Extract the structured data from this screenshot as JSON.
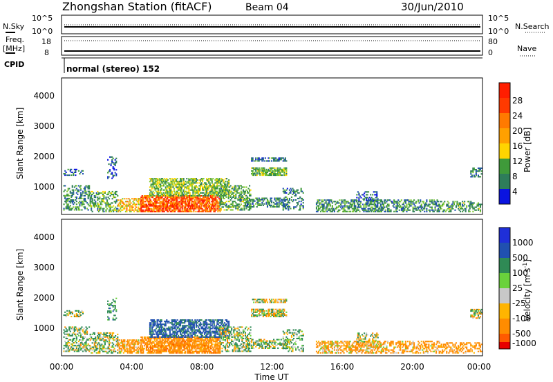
{
  "header": {
    "station_title": "Zhongshan Station (fitACF)",
    "beam": "Beam 04",
    "date": "30/Jun/2010"
  },
  "strip_labels": {
    "nsky": "N.Sky",
    "nsky_top": "10^5",
    "nsky_bottom": "10^0",
    "nsearch": "N.Search",
    "nsearch_top": "10^5",
    "nsearch_bottom": "10^0",
    "freq_line1": "Freq.",
    "freq_line2": "[MHz]",
    "freq_top": "18",
    "freq_bottom": "8",
    "nave": "Nave",
    "nave_top": "80",
    "nave_bottom": "0",
    "cpid": "CPID",
    "cpid_value": "normal (stereo) 152"
  },
  "x_axis": {
    "label": "Time UT",
    "ticks": [
      "00:00",
      "04:00",
      "08:00",
      "12:00",
      "16:00",
      "20:00",
      "00:00"
    ]
  },
  "panels": {
    "power": {
      "ylabel": "Slant Range [km]",
      "yticks": [
        "1000",
        "2000",
        "3000",
        "4000"
      ],
      "colorbar_label": "Power [dB]",
      "colorbar_ticks": [
        "4",
        "8",
        "12",
        "16",
        "20",
        "24",
        "28"
      ]
    },
    "velocity": {
      "ylabel": "Slant Range [km]",
      "yticks": [
        "1000",
        "2000",
        "3000",
        "4000"
      ],
      "colorbar_label": "Velocity [m s",
      "colorbar_label_sup": "-1",
      "colorbar_label_end": "]",
      "colorbar_ticks": [
        "1000",
        "500",
        "100",
        "25",
        "-25",
        "-100",
        "-500",
        "-1000"
      ]
    }
  },
  "chart_data": {
    "type": "heatmap",
    "title": "Zhongshan Station (fitACF) Beam 04 30/Jun/2010",
    "x_unit": "hours UT",
    "xlim": [
      0,
      24
    ],
    "ylim": [
      180,
      4500
    ],
    "xlabel": "Time UT",
    "ylabel": "Slant Range [km]",
    "power_scale": {
      "label": "Power [dB]",
      "range": [
        0,
        30
      ],
      "colors": [
        "#0a14e0",
        "#1f4fb0",
        "#2e7d5a",
        "#3f9a3a",
        "#7fc832",
        "#ffd800",
        "#ffa000",
        "#ff6a00",
        "#ff2000"
      ]
    },
    "velocity_scale": {
      "label": "Velocity [m s-1]",
      "boundaries": [
        -1000,
        -500,
        -100,
        -25,
        25,
        100,
        500,
        1000
      ],
      "colors": [
        "#e80000",
        "#ff5a00",
        "#ff8c00",
        "#ffb400",
        "#c8c8c8",
        "#6ad23c",
        "#2f8a55",
        "#2050b0",
        "#1f2fd8"
      ]
    },
    "scatter_regions": [
      {
        "t0": 0.1,
        "t1": 1.6,
        "r0": 300,
        "r1": 1100,
        "power": 10,
        "velocity": 120,
        "density": 0.45
      },
      {
        "t0": 0.1,
        "t1": 1.2,
        "r0": 1400,
        "r1": 1620,
        "power": 6,
        "velocity": 60,
        "density": 0.4
      },
      {
        "t0": 1.6,
        "t1": 3.2,
        "r0": 250,
        "r1": 900,
        "power": 12,
        "velocity": 80,
        "density": 0.45
      },
      {
        "t0": 2.6,
        "t1": 3.1,
        "r0": 1300,
        "r1": 2000,
        "power": 6,
        "velocity": 300,
        "density": 0.25
      },
      {
        "t0": 3.2,
        "t1": 4.5,
        "r0": 250,
        "r1": 700,
        "power": 20,
        "velocity": -200,
        "density": 0.55
      },
      {
        "t0": 4.5,
        "t1": 9.0,
        "r0": 250,
        "r1": 750,
        "power": 26,
        "velocity": -300,
        "density": 0.75
      },
      {
        "t0": 5.0,
        "t1": 9.5,
        "r0": 750,
        "r1": 1300,
        "power": 14,
        "velocity": 600,
        "density": 0.6
      },
      {
        "t0": 9.0,
        "t1": 10.8,
        "r0": 300,
        "r1": 1100,
        "power": 12,
        "velocity": 80,
        "density": 0.5
      },
      {
        "t0": 10.8,
        "t1": 12.8,
        "r0": 1400,
        "r1": 1650,
        "power": 13,
        "velocity": 0,
        "density": 0.7
      },
      {
        "t0": 10.8,
        "t1": 12.8,
        "r0": 1850,
        "r1": 1980,
        "power": 8,
        "velocity": 0,
        "density": 0.6
      },
      {
        "t0": 10.5,
        "t1": 13.0,
        "r0": 400,
        "r1": 700,
        "power": 9,
        "velocity": 90,
        "density": 0.5
      },
      {
        "t0": 12.6,
        "t1": 13.8,
        "r0": 300,
        "r1": 1000,
        "power": 8,
        "velocity": 150,
        "density": 0.3
      },
      {
        "t0": 14.5,
        "t1": 18.2,
        "r0": 250,
        "r1": 650,
        "power": 10,
        "velocity": -150,
        "density": 0.55
      },
      {
        "t0": 16.8,
        "t1": 18.0,
        "r0": 600,
        "r1": 900,
        "power": 6,
        "velocity": 0,
        "density": 0.35
      },
      {
        "t0": 18.2,
        "t1": 21.5,
        "r0": 250,
        "r1": 650,
        "power": 9,
        "velocity": -200,
        "density": 0.45
      },
      {
        "t0": 21.5,
        "t1": 23.9,
        "r0": 250,
        "r1": 600,
        "power": 11,
        "velocity": -250,
        "density": 0.4
      },
      {
        "t0": 23.3,
        "t1": 23.9,
        "r0": 1350,
        "r1": 1650,
        "power": 8,
        "velocity": 0,
        "density": 0.5
      }
    ],
    "frequency_mhz": [
      {
        "t0": 0,
        "t1": 24,
        "value": 12
      }
    ],
    "nave": [
      {
        "t0": 0,
        "t1": 24,
        "value": 0
      }
    ]
  }
}
